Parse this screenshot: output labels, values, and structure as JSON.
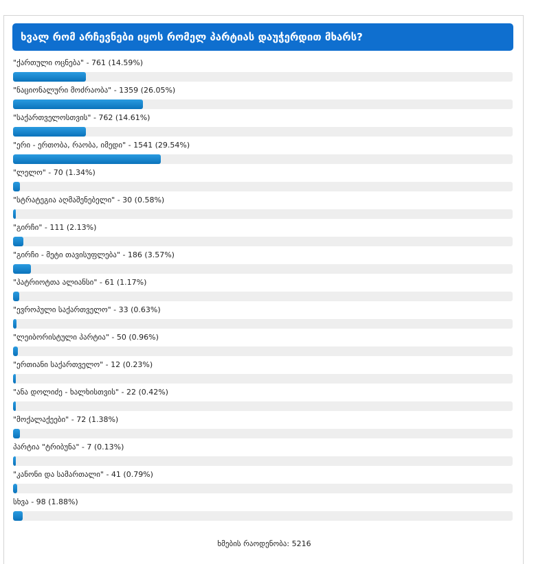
{
  "poll": {
    "question": "ხვალ რომ არჩევნები იყოს რომელ პარტიას დაუჭერდით მხარს?",
    "accent_color": "#0f6fcf",
    "bar_color": "#1187cf",
    "options": [
      {
        "label": "\"ქართული ოცნება\" - 761 (14.59%)",
        "percent": 14.59
      },
      {
        "label": "\"ნაციონალური მოძრაობა\" - 1359 (26.05%)",
        "percent": 26.05
      },
      {
        "label": "\"საქართველოსთვის\" - 762 (14.61%)",
        "percent": 14.61
      },
      {
        "label": "\"ერი - ერთობა, რაობა, იმედი\" - 1541 (29.54%)",
        "percent": 29.54
      },
      {
        "label": "\"ლელო\" - 70 (1.34%)",
        "percent": 1.34
      },
      {
        "label": "\"სტრატეგია აღმაშენებელი\" - 30 (0.58%)",
        "percent": 0.58
      },
      {
        "label": "\"გირჩი\" - 111 (2.13%)",
        "percent": 2.13
      },
      {
        "label": "\"გირჩი - მეტი თავისუფლება\" - 186 (3.57%)",
        "percent": 3.57
      },
      {
        "label": "\"პატრიოტთა ალიანსი\" - 61 (1.17%)",
        "percent": 1.17
      },
      {
        "label": "\"ევროპული საქართველო\" - 33 (0.63%)",
        "percent": 0.63
      },
      {
        "label": "\"ლეიბორისტული პარტია\" - 50 (0.96%)",
        "percent": 0.96
      },
      {
        "label": "\"ერთიანი საქართველო\" - 12 (0.23%)",
        "percent": 0.23
      },
      {
        "label": "\"ანა დოლიძე - ხალხისთვის\" - 22 (0.42%)",
        "percent": 0.42
      },
      {
        "label": "\"მოქალაქეები\" - 72 (1.38%)",
        "percent": 1.38
      },
      {
        "label": "პარტია \"ტრიბუნა\" - 7 (0.13%)",
        "percent": 0.13
      },
      {
        "label": "\"კანონი და სამართალი\" - 41 (0.79%)",
        "percent": 0.79
      },
      {
        "label": "სხვა - 98 (1.88%)",
        "percent": 1.88
      }
    ],
    "total_text": "ხმების რაოდენობა: 5216"
  }
}
